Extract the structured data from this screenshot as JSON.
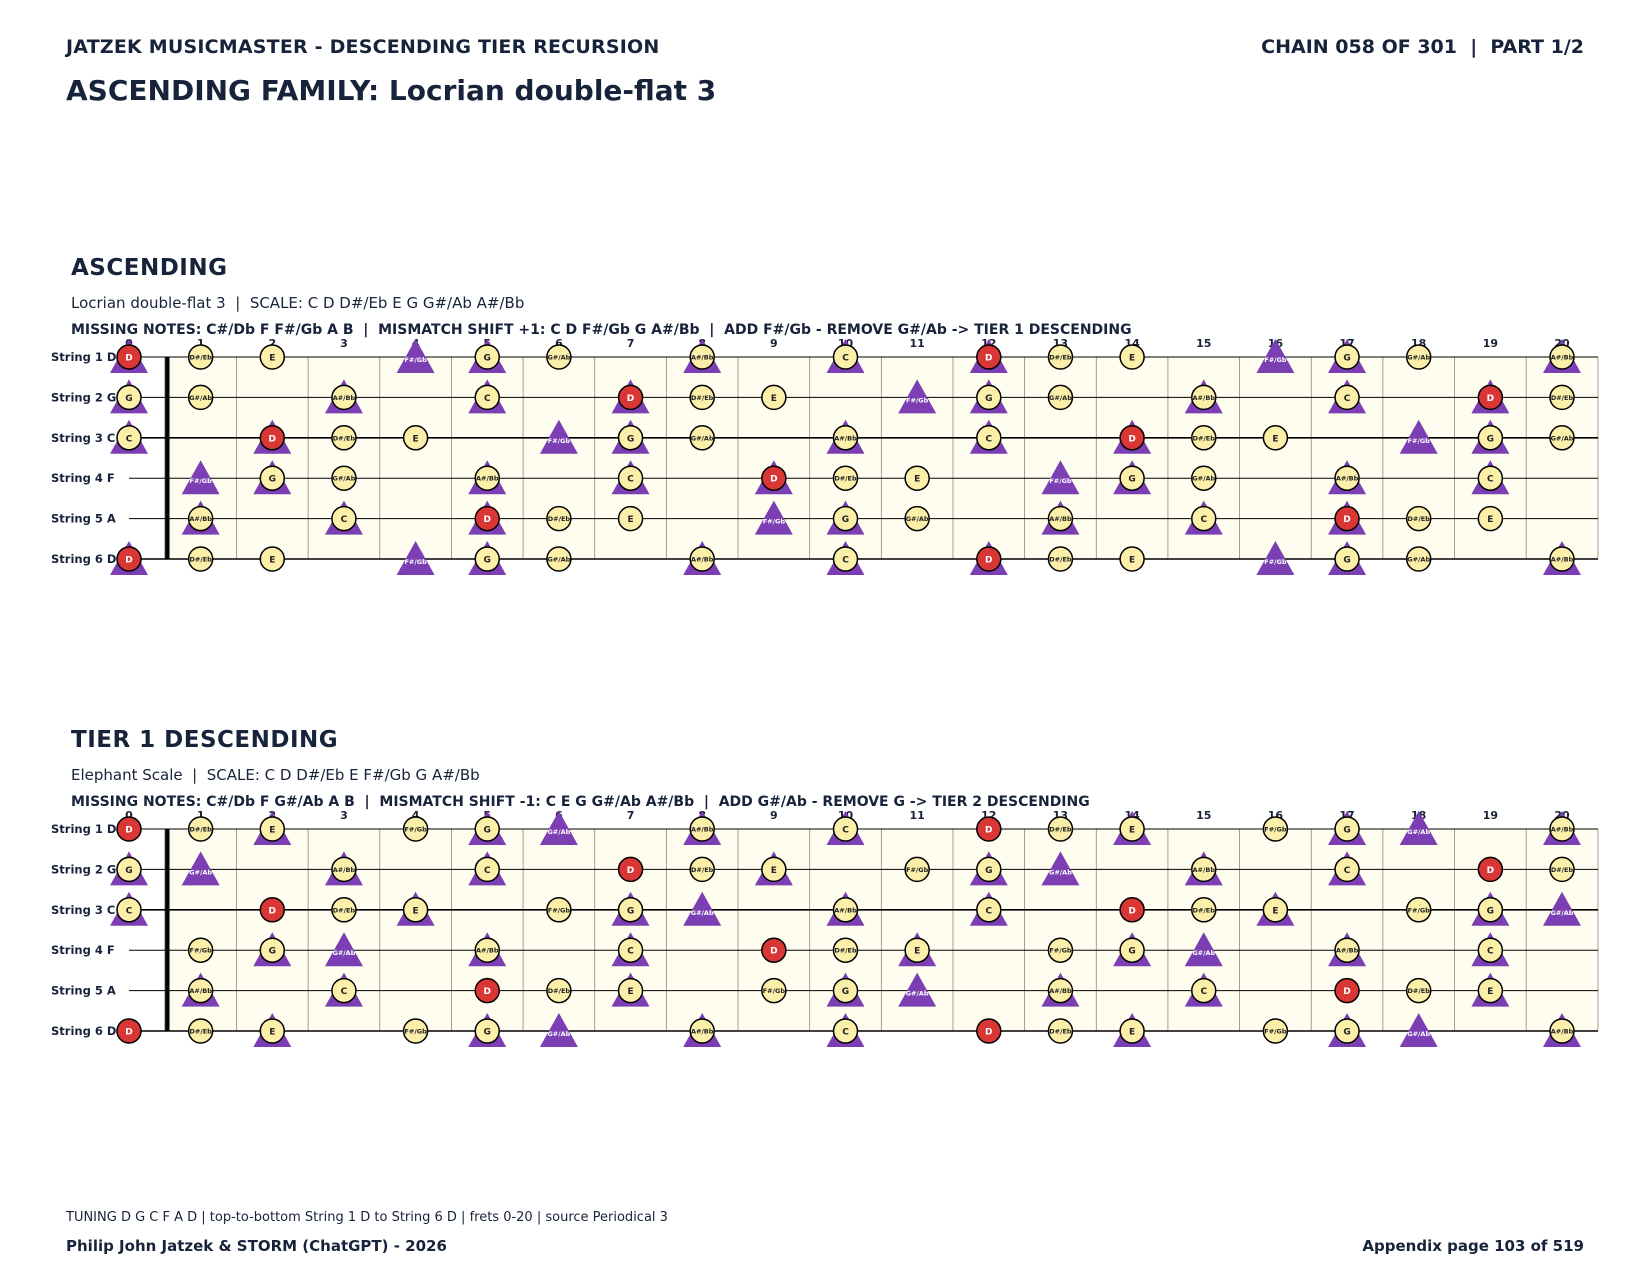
{
  "header": {
    "left": "JATZEK MUSICMASTER - DESCENDING TIER RECURSION",
    "right": "CHAIN 058 OF 301  |  PART 1/2"
  },
  "title": "ASCENDING FAMILY: Locrian double-flat 3",
  "frets": [
    "0",
    "1",
    "2",
    "3",
    "4",
    "5",
    "6",
    "7",
    "8",
    "9",
    "10",
    "11",
    "12",
    "13",
    "14",
    "15",
    "16",
    "17",
    "18",
    "19",
    "20"
  ],
  "strings": [
    {
      "label": "String 1 D",
      "open": "D"
    },
    {
      "label": "String 2 G",
      "open": "G"
    },
    {
      "label": "String 3 C",
      "open": "C"
    },
    {
      "label": "String 4 F",
      "open": "F"
    },
    {
      "label": "String 5 A",
      "open": "A"
    },
    {
      "label": "String 6 D",
      "open": "D"
    }
  ],
  "chromatic": [
    "C",
    "C#/Db",
    "D",
    "D#/Eb",
    "E",
    "F",
    "F#/Gb",
    "G",
    "G#/Ab",
    "A",
    "A#/Bb",
    "B"
  ],
  "sections": [
    {
      "title": "ASCENDING",
      "subtitle": "Locrian double-flat 3  |  SCALE: C D D#/Eb E G G#/Ab A#/Bb",
      "missing": "MISSING NOTES: C#/Db F F#/Gb A B  |  MISMATCH SHIFT +1: C D F#/Gb G A#/Bb  |  ADD F#/Gb - REMOVE G#/Ab -> TIER 1 DESCENDING",
      "circle_notes": [
        "C",
        "D",
        "D#/Eb",
        "E",
        "G",
        "G#/Ab",
        "A#/Bb"
      ],
      "triangle_notes": [
        "C",
        "D",
        "F#/Gb",
        "G",
        "A#/Bb"
      ],
      "root": "D"
    },
    {
      "title": "TIER 1 DESCENDING",
      "subtitle": "Elephant Scale  |  SCALE: C D D#/Eb E F#/Gb G A#/Bb",
      "missing": "MISSING NOTES: C#/Db F G#/Ab A B  |  MISMATCH SHIFT -1: C E G G#/Ab A#/Bb  |  ADD G#/Ab - REMOVE G -> TIER 2 DESCENDING",
      "circle_notes": [
        "C",
        "D",
        "D#/Eb",
        "E",
        "F#/Gb",
        "G",
        "A#/Bb"
      ],
      "triangle_notes": [
        "C",
        "E",
        "G",
        "G#/Ab",
        "A#/Bb"
      ],
      "root": "D"
    }
  ],
  "colors": {
    "circle_fill": "#fbefaa",
    "root_fill": "#d93636",
    "triangle_fill": "#7b3fb3",
    "board_bg": "#fffdf0",
    "text": "#17233a"
  },
  "footer": {
    "note": "TUNING D G C F A D | top-to-bottom String 1 D to String 6 D | frets 0-20 | source Periodical 3",
    "credit": "Philip John Jatzek & STORM (ChatGPT) - 2026",
    "page": "Appendix page 103 of 519"
  }
}
